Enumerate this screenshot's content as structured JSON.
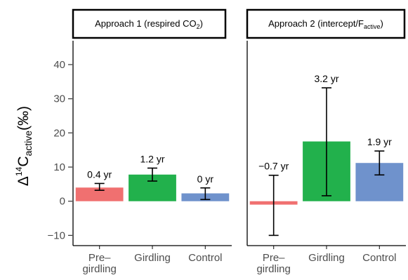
{
  "chart_data": {
    "type": "bar",
    "ylabel": {
      "delta": "Δ",
      "sup": "14",
      "main": "C",
      "sub": "active",
      "unit": "(‰)"
    },
    "ylim": [
      -13,
      47
    ],
    "yticks": [
      -10,
      0,
      10,
      20,
      30,
      40
    ],
    "grid": false,
    "categories": [
      {
        "lines": [
          "Pre–",
          "girdling"
        ]
      },
      {
        "lines": [
          "Girdling"
        ]
      },
      {
        "lines": [
          "Control"
        ]
      }
    ],
    "colors": [
      "#f07070",
      "#22b14c",
      "#6f92cc"
    ],
    "panels": [
      {
        "strip": {
          "pre": "Approach 1 (respired CO",
          "sub": "2",
          "post": ")"
        },
        "values": [
          4.0,
          7.8,
          2.3
        ],
        "errors": [
          [
            3.2,
            5.2
          ],
          [
            5.9,
            9.7
          ],
          [
            0.5,
            3.9
          ]
        ],
        "labels": [
          "0.4 yr",
          "1.2 yr",
          "0 yr"
        ]
      },
      {
        "strip": {
          "pre": "Approach 2 (intercept/F",
          "sub": "active",
          "post": ")"
        },
        "values": [
          -1.0,
          17.5,
          11.2
        ],
        "errors": [
          [
            -10.0,
            7.6
          ],
          [
            1.6,
            33.2
          ],
          [
            7.7,
            14.7
          ]
        ],
        "labels": [
          "−0.7 yr",
          "3.2 yr",
          "1.9 yr"
        ]
      }
    ]
  }
}
